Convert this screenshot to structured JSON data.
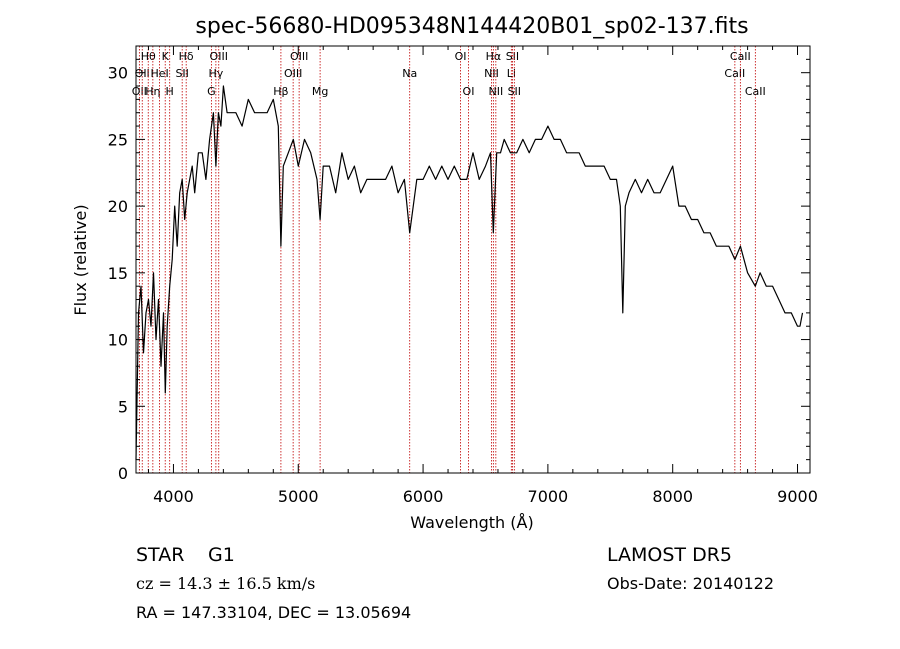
{
  "chart_data": {
    "type": "line",
    "title": "spec-56680-HD095348N144420B01_sp02-137.fits",
    "xlabel": "Wavelength (Å)",
    "ylabel": "Flux (relative)",
    "xlim": [
      3700,
      9100
    ],
    "ylim": [
      0,
      32
    ],
    "xticks": [
      4000,
      5000,
      6000,
      7000,
      8000,
      9000
    ],
    "yticks": [
      0,
      5,
      10,
      15,
      20,
      25,
      30
    ],
    "grid": false,
    "series": [
      {
        "x": [
          3700,
          3720,
          3740,
          3760,
          3780,
          3800,
          3820,
          3840,
          3860,
          3880,
          3900,
          3920,
          3935,
          3950,
          3970,
          3990,
          4010,
          4030,
          4050,
          4070,
          4090,
          4110,
          4130,
          4150,
          4170,
          4200,
          4230,
          4260,
          4290,
          4320,
          4340,
          4360,
          4380,
          4400,
          4430,
          4460,
          4500,
          4550,
          4600,
          4650,
          4700,
          4750,
          4800,
          4840,
          4861,
          4880,
          4920,
          4960,
          5000,
          5050,
          5100,
          5150,
          5175,
          5200,
          5250,
          5300,
          5350,
          5400,
          5450,
          5500,
          5550,
          5600,
          5650,
          5700,
          5750,
          5800,
          5850,
          5893,
          5950,
          6000,
          6050,
          6100,
          6150,
          6200,
          6250,
          6300,
          6350,
          6400,
          6450,
          6500,
          6540,
          6563,
          6590,
          6620,
          6650,
          6700,
          6750,
          6800,
          6850,
          6900,
          6950,
          7000,
          7050,
          7100,
          7150,
          7200,
          7250,
          7300,
          7350,
          7400,
          7450,
          7500,
          7550,
          7580,
          7600,
          7620,
          7650,
          7700,
          7750,
          7800,
          7850,
          7900,
          7950,
          8000,
          8050,
          8100,
          8150,
          8200,
          8250,
          8300,
          8350,
          8400,
          8450,
          8498,
          8542,
          8600,
          8662,
          8700,
          8750,
          8800,
          8850,
          8900,
          8950,
          9000,
          9020,
          9040
        ],
        "values": [
          1,
          12,
          14,
          9,
          12,
          13,
          11,
          15,
          10,
          13,
          8,
          12,
          6,
          11,
          14,
          16,
          20,
          17,
          21,
          22,
          19,
          21,
          22,
          23,
          21,
          24,
          24,
          22,
          25,
          27,
          23,
          27,
          26,
          29,
          27,
          27,
          27,
          26,
          28,
          27,
          27,
          27,
          28,
          26,
          17,
          23,
          24,
          25,
          23,
          25,
          24,
          22,
          19,
          23,
          23,
          21,
          24,
          22,
          23,
          21,
          22,
          22,
          22,
          22,
          23,
          21,
          22,
          18,
          22,
          22,
          23,
          22,
          23,
          22,
          23,
          22,
          22,
          24,
          22,
          23,
          24,
          18,
          24,
          24,
          25,
          24,
          24,
          25,
          24,
          25,
          25,
          26,
          25,
          25,
          24,
          24,
          24,
          23,
          23,
          23,
          23,
          22,
          22,
          20,
          12,
          20,
          21,
          22,
          21,
          22,
          21,
          21,
          22,
          23,
          20,
          20,
          19,
          19,
          18,
          18,
          17,
          17,
          17,
          16,
          17,
          15,
          14,
          15,
          14,
          14,
          13,
          12,
          12,
          11,
          11,
          12
        ]
      }
    ],
    "annotations": [
      {
        "wave": 3727,
        "label": "OII",
        "row": 3
      },
      {
        "wave": 3750,
        "label": "OII",
        "row": 2
      },
      {
        "wave": 3798,
        "label": "Hθ",
        "row": 1
      },
      {
        "wave": 3835,
        "label": "Hη",
        "row": 3
      },
      {
        "wave": 3889,
        "label": "HeI",
        "row": 2
      },
      {
        "wave": 3934,
        "label": "K",
        "row": 1
      },
      {
        "wave": 3970,
        "label": "H",
        "row": 3
      },
      {
        "wave": 4070,
        "label": "SII",
        "row": 2
      },
      {
        "wave": 4102,
        "label": "Hδ",
        "row": 1
      },
      {
        "wave": 4304,
        "label": "G",
        "row": 3
      },
      {
        "wave": 4340,
        "label": "Hγ",
        "row": 2
      },
      {
        "wave": 4363,
        "label": "OIII",
        "row": 1
      },
      {
        "wave": 4861,
        "label": "Hβ",
        "row": 3
      },
      {
        "wave": 4959,
        "label": "OIII",
        "row": 2
      },
      {
        "wave": 5007,
        "label": "OIII",
        "row": 1
      },
      {
        "wave": 5175,
        "label": "Mg",
        "row": 3
      },
      {
        "wave": 5893,
        "label": "Na",
        "row": 2
      },
      {
        "wave": 6300,
        "label": "OI",
        "row": 1
      },
      {
        "wave": 6364,
        "label": "OI",
        "row": 3
      },
      {
        "wave": 6548,
        "label": "NII",
        "row": 2
      },
      {
        "wave": 6563,
        "label": "Hα",
        "row": 1
      },
      {
        "wave": 6583,
        "label": "NII",
        "row": 3
      },
      {
        "wave": 6707,
        "label": "Li",
        "row": 2
      },
      {
        "wave": 6716,
        "label": "SII",
        "row": 1
      },
      {
        "wave": 6731,
        "label": "SII",
        "row": 3
      },
      {
        "wave": 8498,
        "label": "CaII",
        "row": 2
      },
      {
        "wave": 8542,
        "label": "CaII",
        "row": 1
      },
      {
        "wave": 8662,
        "label": "CaII",
        "row": 3
      }
    ],
    "line_color": "#000000",
    "marker_color": "#c00000"
  },
  "info": {
    "class": "STAR",
    "subclass": "G1",
    "survey": "LAMOST DR5",
    "cz": "cz = 14.3 ± 16.5 km/s",
    "obs_date": "Obs-Date: 20140122",
    "radec": "RA = 147.33104, DEC =  13.05694"
  }
}
